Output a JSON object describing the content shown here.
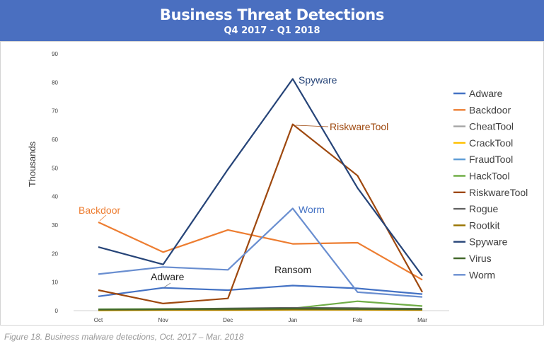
{
  "header": {
    "title": "Business Threat Detections",
    "subtitle": "Q4 2017 - Q1 2018"
  },
  "caption": "Figure 18. Business malware detections, Oct. 2017 – Mar. 2018",
  "chart_data": {
    "type": "line",
    "title": "Business Threat Detections",
    "subtitle": "Q4 2017 - Q1 2018",
    "xlabel": "",
    "ylabel": "Thousands",
    "categories": [
      "Oct",
      "Nov",
      "Dec",
      "Jan",
      "Feb",
      "Mar"
    ],
    "ylim": [
      0,
      90
    ],
    "yticks": [
      0,
      10,
      20,
      30,
      40,
      50,
      60,
      70,
      80,
      90
    ],
    "grid": false,
    "legend_position": "right",
    "series": [
      {
        "name": "Adware",
        "color": "#4472c4",
        "values": [
          5,
          8,
          7.2,
          8.8,
          7.8,
          5.8
        ]
      },
      {
        "name": "Backdoor",
        "color": "#ed7d31",
        "values": [
          31,
          20.5,
          28.3,
          23.4,
          23.8,
          10.8
        ]
      },
      {
        "name": "CheatTool",
        "color": "#a5a5a5",
        "values": [
          0.2,
          0.3,
          0.4,
          0.5,
          0.6,
          0.5
        ]
      },
      {
        "name": "CrackTool",
        "color": "#ffc000",
        "values": [
          0.1,
          0.2,
          0.2,
          0.3,
          0.3,
          0.2
        ]
      },
      {
        "name": "FraudTool",
        "color": "#5b9bd5",
        "values": [
          0.3,
          0.4,
          0.5,
          0.6,
          0.5,
          0.4
        ]
      },
      {
        "name": "HackTool",
        "color": "#70ad47",
        "values": [
          0.5,
          0.6,
          0.7,
          0.8,
          3.3,
          1.6
        ]
      },
      {
        "name": "RiskwareTool",
        "color": "#9e480e",
        "values": [
          7.2,
          2.5,
          4.3,
          65.3,
          47.3,
          6.5
        ]
      },
      {
        "name": "Rogue",
        "color": "#636363",
        "values": [
          0.3,
          0.5,
          0.8,
          1.0,
          0.9,
          0.7
        ]
      },
      {
        "name": "Rootkit",
        "color": "#997300",
        "values": [
          0.2,
          0.3,
          0.3,
          0.4,
          0.4,
          0.3
        ]
      },
      {
        "name": "Spyware",
        "color": "#264478",
        "values": [
          22.3,
          16.2,
          49.5,
          81.2,
          43,
          12.2
        ]
      },
      {
        "name": "Virus",
        "color": "#43682b",
        "values": [
          0.4,
          0.5,
          0.6,
          0.7,
          0.6,
          0.5
        ]
      },
      {
        "name": "Worm",
        "color": "#698ed0",
        "values": [
          12.8,
          15.3,
          14.3,
          35.8,
          6.5,
          4.8
        ]
      }
    ],
    "annotations": [
      {
        "text": "Spyware",
        "color": "#264478"
      },
      {
        "text": "RiskwareTool",
        "color": "#9e480e"
      },
      {
        "text": "Worm",
        "color": "#4472c4"
      },
      {
        "text": "Backdoor",
        "color": "#ed7d31"
      },
      {
        "text": "Adware",
        "color": "#222222"
      },
      {
        "text": "Ransom",
        "color": "#222222"
      }
    ]
  }
}
